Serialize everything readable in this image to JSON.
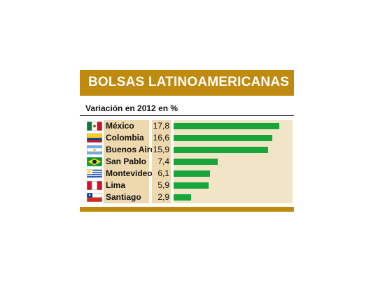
{
  "header": {
    "title": "BOLSAS LATINOAMERICANAS"
  },
  "subtitle": "Variación en 2012 en %",
  "colors": {
    "brand": "#c08a0e",
    "bar": "#18a53a",
    "cell": "#eed8ad",
    "track": "#f2e4c6"
  },
  "chart_data": {
    "type": "bar",
    "orientation": "horizontal",
    "title": "BOLSAS LATINOAMERICANAS",
    "subtitle": "Variación en 2012 en %",
    "categories": [
      "México",
      "Colombia",
      "Buenos Aires",
      "San Pablo",
      "Montevideo",
      "Lima",
      "Santiago"
    ],
    "values": [
      17.8,
      16.6,
      15.9,
      7.4,
      6.1,
      5.9,
      2.9
    ],
    "value_labels": [
      "17,8",
      "16,6",
      "15,9",
      "7,4",
      "6,1",
      "5,9",
      "2,9"
    ],
    "flags": [
      "mexico-flag-icon",
      "colombia-flag-icon",
      "argentina-flag-icon",
      "brazil-flag-icon",
      "uruguay-flag-icon",
      "peru-flag-icon",
      "chile-flag-icon"
    ],
    "xlim": [
      0,
      20
    ],
    "grid": false,
    "legend": "none"
  }
}
